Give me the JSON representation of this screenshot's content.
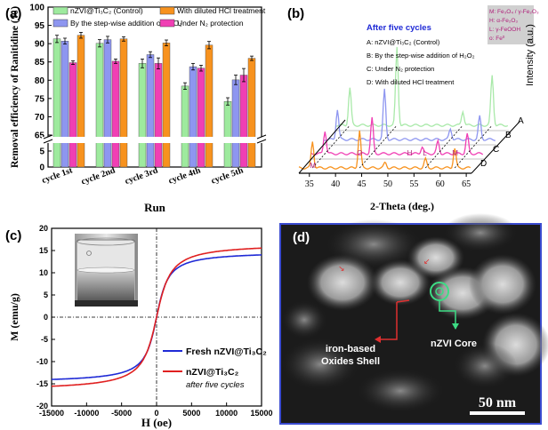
{
  "panels": {
    "a": {
      "tag": "(a)"
    },
    "b": {
      "tag": "(b)"
    },
    "c": {
      "tag": "(c)"
    },
    "d": {
      "tag": "(d)",
      "label_shell_1": "iron-based",
      "label_shell_2": "Oxides Shell",
      "label_core": "nZVI Core",
      "scale_bar": "50 nm"
    }
  },
  "chart_data": [
    {
      "type": "bar",
      "panel": "a",
      "ylabel": "Removal efficiency of Ranitidine (%)",
      "xlabel": "Run",
      "ylim": [
        0,
        100
      ],
      "axis_break": [
        5,
        65
      ],
      "yticks": [
        "0",
        "5",
        "65",
        "70",
        "75",
        "80",
        "85",
        "90",
        "95",
        "100"
      ],
      "categories": [
        "cycle 1st",
        "cycle 2nd",
        "cycle 3rd",
        "cycle 4th",
        "cycle 5th"
      ],
      "series": [
        {
          "name": "nZVI@Ti₃C₂ (Control)",
          "color": "#9EEA9E",
          "values": [
            91.3,
            90.1,
            84.6,
            78.4,
            74.2
          ],
          "errors": [
            1.0,
            1.0,
            1.2,
            0.9,
            1.0
          ]
        },
        {
          "name": "By the step-wise addition of H₂O₂",
          "color": "#8E96F0",
          "values": [
            90.7,
            91.1,
            87.0,
            83.7,
            80.1
          ],
          "errors": [
            0.8,
            0.9,
            0.8,
            0.9,
            1.3
          ]
        },
        {
          "name": "Under N₂ protection",
          "color": "#F03FB4",
          "values": [
            84.8,
            85.2,
            84.6,
            83.3,
            81.4
          ],
          "errors": [
            0.5,
            0.6,
            1.5,
            0.8,
            1.8
          ]
        },
        {
          "name": "With diluted HCl treatment",
          "color": "#F7921E",
          "values": [
            92.3,
            91.3,
            90.2,
            89.6,
            86.0
          ],
          "errors": [
            0.8,
            0.6,
            0.8,
            1.0,
            0.6
          ]
        }
      ],
      "legend_position": "top"
    },
    {
      "type": "line",
      "panel": "b",
      "xlabel": "2-Theta (deg.)",
      "ylabel": "Intensity (a.u.)",
      "xticks": [
        "35",
        "40",
        "45",
        "50",
        "55",
        "60",
        "65"
      ],
      "title": "After five cycles",
      "curves": [
        {
          "letter": "A",
          "name": "A: nZVI@Ti₃C₂  (Control)",
          "color": "#A9E9A9"
        },
        {
          "letter": "B",
          "name": "B: By the step-wise addition of H₂O₂",
          "color": "#8E96F0"
        },
        {
          "letter": "C",
          "name": "C: Under N₂ protection",
          "color": "#F03FB4"
        },
        {
          "letter": "D",
          "name": "D: With diluted HCl treatment",
          "color": "#F7921E"
        }
      ],
      "phase_legend": [
        "M: Fe₃O₄ / γ-Fe₂O₃",
        "H: α-Fe₂O₃",
        "L: γ-FeOOH",
        "o: Fe⁰"
      ],
      "peak_markers": [
        "M",
        "O",
        "H",
        "L",
        "M"
      ]
    },
    {
      "type": "line",
      "panel": "c",
      "xlabel": "H (oe)",
      "ylabel": "M (emu/g)",
      "xlim": [
        -15000,
        15000
      ],
      "ylim": [
        -20,
        20
      ],
      "xticks": [
        "-15000",
        "-10000",
        "-5000",
        "0",
        "5000",
        "10000",
        "15000"
      ],
      "yticks": [
        "-20",
        "-15",
        "-10",
        "-5",
        "0",
        "5",
        "10",
        "15",
        "20"
      ],
      "series": [
        {
          "name": "Fresh nZVI@Ti₃C₂",
          "color": "#1f2ad6",
          "Ms": 14.8
        },
        {
          "name": "nZVI@Ti₃C₂",
          "note": "after five cycles",
          "color": "#e02020",
          "Ms": 16.6
        }
      ]
    }
  ]
}
